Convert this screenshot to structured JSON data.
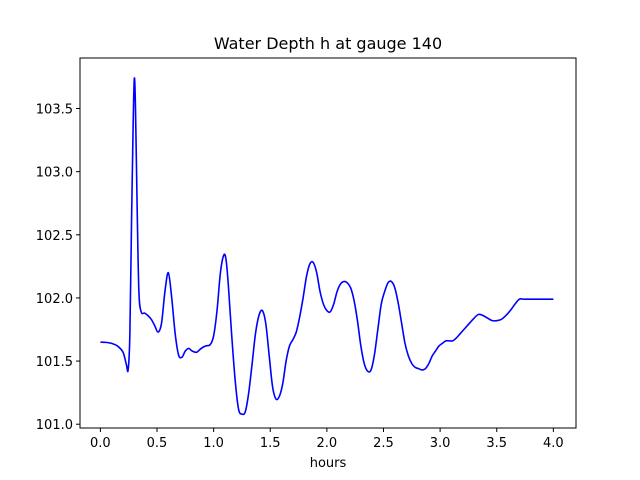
{
  "chart_data": {
    "type": "line",
    "title": "Water Depth h at gauge 140",
    "xlabel": "hours",
    "ylabel": "",
    "xlim": [
      -0.18,
      4.2
    ],
    "ylim": [
      100.97,
      103.9
    ],
    "xticks": [
      0.0,
      0.5,
      1.0,
      1.5,
      2.0,
      2.5,
      3.0,
      3.5,
      4.0
    ],
    "xtick_labels": [
      "0.0",
      "0.5",
      "1.0",
      "1.5",
      "2.0",
      "2.5",
      "3.0",
      "3.5",
      "4.0"
    ],
    "yticks": [
      101.0,
      101.5,
      102.0,
      102.5,
      103.0,
      103.5
    ],
    "ytick_labels": [
      "101.0",
      "101.5",
      "102.0",
      "102.5",
      "103.0",
      "103.5"
    ],
    "grid": false,
    "series": [
      {
        "color": "#0000ff",
        "x": [
          0.0,
          0.05,
          0.1,
          0.15,
          0.2,
          0.23,
          0.245,
          0.26,
          0.275,
          0.29,
          0.3,
          0.31,
          0.325,
          0.34,
          0.36,
          0.39,
          0.42,
          0.45,
          0.48,
          0.51,
          0.54,
          0.57,
          0.6,
          0.63,
          0.66,
          0.69,
          0.72,
          0.75,
          0.78,
          0.81,
          0.85,
          0.89,
          0.93,
          0.97,
          1.0,
          1.03,
          1.06,
          1.09,
          1.11,
          1.13,
          1.16,
          1.19,
          1.22,
          1.25,
          1.28,
          1.31,
          1.34,
          1.37,
          1.4,
          1.43,
          1.46,
          1.49,
          1.52,
          1.55,
          1.58,
          1.61,
          1.64,
          1.67,
          1.7,
          1.73,
          1.76,
          1.79,
          1.82,
          1.85,
          1.88,
          1.91,
          1.94,
          1.97,
          2.0,
          2.03,
          2.06,
          2.09,
          2.12,
          2.15,
          2.18,
          2.21,
          2.24,
          2.27,
          2.3,
          2.33,
          2.36,
          2.39,
          2.42,
          2.45,
          2.48,
          2.51,
          2.54,
          2.57,
          2.6,
          2.63,
          2.66,
          2.69,
          2.72,
          2.75,
          2.78,
          2.81,
          2.84,
          2.87,
          2.9,
          2.93,
          2.96,
          2.99,
          3.02,
          3.05,
          3.08,
          3.11,
          3.14,
          3.18,
          3.22,
          3.26,
          3.3,
          3.34,
          3.38,
          3.42,
          3.46,
          3.5,
          3.54,
          3.58,
          3.62,
          3.66,
          3.7,
          3.74,
          3.78,
          3.82,
          3.86,
          3.9,
          3.94,
          3.97,
          4.0
        ],
        "y": [
          101.65,
          101.648,
          101.64,
          101.62,
          101.57,
          101.47,
          101.43,
          101.7,
          102.6,
          103.4,
          103.74,
          103.5,
          102.7,
          102.05,
          101.89,
          101.88,
          101.86,
          101.83,
          101.78,
          101.73,
          101.8,
          102.05,
          102.2,
          102.0,
          101.72,
          101.55,
          101.53,
          101.58,
          101.6,
          101.58,
          101.57,
          101.6,
          101.62,
          101.63,
          101.7,
          101.9,
          102.2,
          102.34,
          102.3,
          102.1,
          101.7,
          101.35,
          101.12,
          101.08,
          101.1,
          101.25,
          101.48,
          101.72,
          101.86,
          101.9,
          101.8,
          101.55,
          101.3,
          101.2,
          101.22,
          101.32,
          101.5,
          101.62,
          101.67,
          101.73,
          101.85,
          102.0,
          102.17,
          102.27,
          102.28,
          102.2,
          102.05,
          101.95,
          101.9,
          101.89,
          101.95,
          102.05,
          102.11,
          102.13,
          102.12,
          102.08,
          101.98,
          101.82,
          101.62,
          101.48,
          101.42,
          101.43,
          101.55,
          101.75,
          101.95,
          102.05,
          102.12,
          102.13,
          102.08,
          101.96,
          101.8,
          101.64,
          101.54,
          101.48,
          101.45,
          101.44,
          101.43,
          101.44,
          101.48,
          101.54,
          101.58,
          101.62,
          101.64,
          101.66,
          101.66,
          101.66,
          101.68,
          101.72,
          101.76,
          101.8,
          101.84,
          101.87,
          101.86,
          101.84,
          101.82,
          101.82,
          101.83,
          101.86,
          101.9,
          101.95,
          101.99,
          101.99,
          101.99,
          101.99,
          101.99,
          101.99,
          101.99,
          101.99,
          101.99
        ]
      }
    ]
  }
}
